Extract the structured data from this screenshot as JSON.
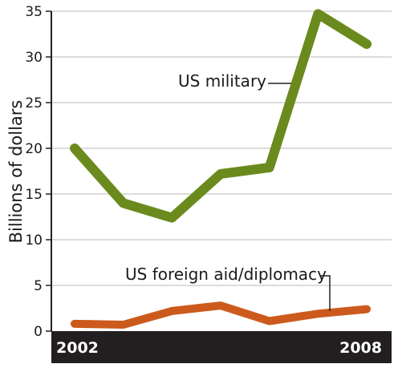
{
  "chart_data": {
    "type": "line",
    "ylabel": "Billions of dollars",
    "ylim": [
      0,
      35
    ],
    "yticks": [
      0,
      5,
      10,
      15,
      20,
      25,
      30,
      35
    ],
    "x": [
      2002,
      2003,
      2004,
      2005,
      2006,
      2007,
      2008
    ],
    "xtick_labels": [
      "2002",
      "2008"
    ],
    "grid": true,
    "series": [
      {
        "name": "US military",
        "color": "#6b8a1e",
        "values": [
          20.0,
          14.0,
          12.4,
          17.2,
          17.9,
          34.7,
          31.4
        ]
      },
      {
        "name": "US foreign aid/diplomacy",
        "color": "#cc5a1c",
        "values": [
          0.8,
          0.7,
          2.2,
          2.8,
          1.1,
          1.9,
          2.4
        ]
      }
    ]
  }
}
